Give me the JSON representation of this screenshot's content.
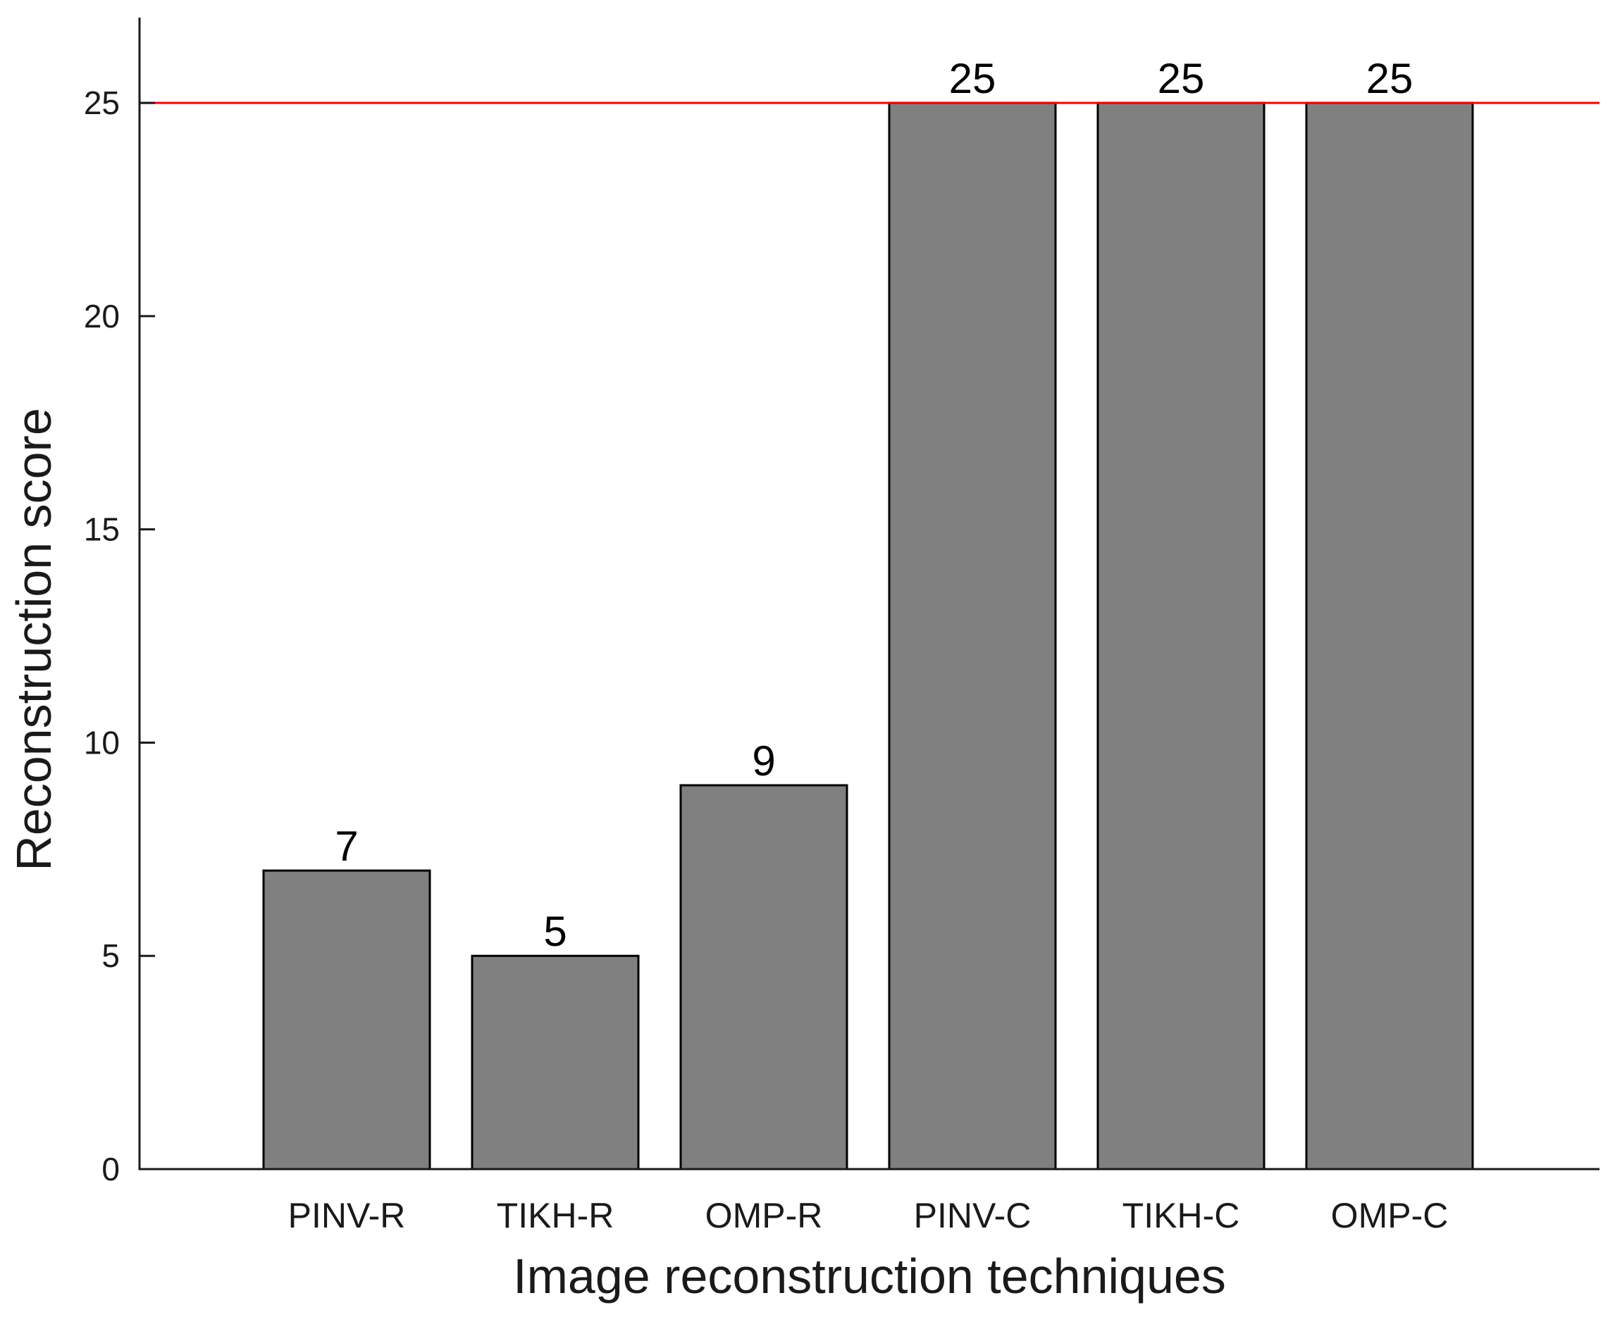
{
  "chart_data": {
    "type": "bar",
    "categories": [
      "PINV-R",
      "TIKH-R",
      "OMP-R",
      "PINV-C",
      "TIKH-C",
      "OMP-C"
    ],
    "values": [
      7,
      5,
      9,
      25,
      25,
      25
    ],
    "data_labels": [
      "7",
      "5",
      "9",
      "25",
      "25",
      "25"
    ],
    "xlabel": "Image reconstruction techniques",
    "ylabel": "Reconstruction score",
    "ylim": [
      0,
      27
    ],
    "yticks": [
      0,
      5,
      10,
      15,
      20,
      25
    ],
    "reference_line": {
      "value": 25,
      "color": "#ff0000"
    },
    "bar_color": "#808080",
    "bar_edge_color": "#000000",
    "grid": false,
    "legend": "none"
  }
}
